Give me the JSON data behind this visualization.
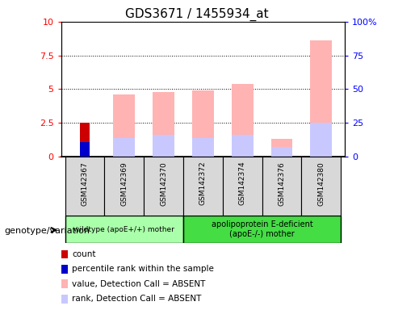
{
  "title": "GDS3671 / 1455934_at",
  "samples": [
    "GSM142367",
    "GSM142369",
    "GSM142370",
    "GSM142372",
    "GSM142374",
    "GSM142376",
    "GSM142380"
  ],
  "count_values": [
    2.5,
    0,
    0,
    0,
    0,
    0,
    0
  ],
  "percentile_rank_values": [
    1.1,
    0,
    0,
    0,
    0,
    0,
    0
  ],
  "value_absent": [
    0,
    4.6,
    4.8,
    4.9,
    5.4,
    1.3,
    8.6
  ],
  "rank_absent": [
    0,
    1.4,
    1.6,
    1.4,
    1.6,
    0.7,
    2.5
  ],
  "ylim_left": [
    0,
    10
  ],
  "ylim_right": [
    0,
    100
  ],
  "yticks_left": [
    0,
    2.5,
    5,
    7.5,
    10
  ],
  "yticks_right": [
    0,
    25,
    50,
    75,
    100
  ],
  "ytick_labels_left": [
    "0",
    "2.5",
    "5",
    "7.5",
    "10"
  ],
  "ytick_labels_right": [
    "0",
    "25",
    "50",
    "75",
    "100%"
  ],
  "color_count": "#cc0000",
  "color_percentile": "#0000cc",
  "color_value_absent": "#ffb3b3",
  "color_rank_absent": "#c8c8ff",
  "group1_label": "wildtype (apoE+/+) mother",
  "group2_label": "apolipoprotein E-deficient\n(apoE-/-) mother",
  "group1_color": "#aaffaa",
  "group2_color": "#44dd44",
  "genotype_label": "genotype/variation",
  "legend_items": [
    {
      "label": "count",
      "color": "#cc0000"
    },
    {
      "label": "percentile rank within the sample",
      "color": "#0000cc"
    },
    {
      "label": "value, Detection Call = ABSENT",
      "color": "#ffb3b3"
    },
    {
      "label": "rank, Detection Call = ABSENT",
      "color": "#c8c8ff"
    }
  ],
  "bar_width": 0.55,
  "grid_color": "black",
  "grid_style": "dotted"
}
